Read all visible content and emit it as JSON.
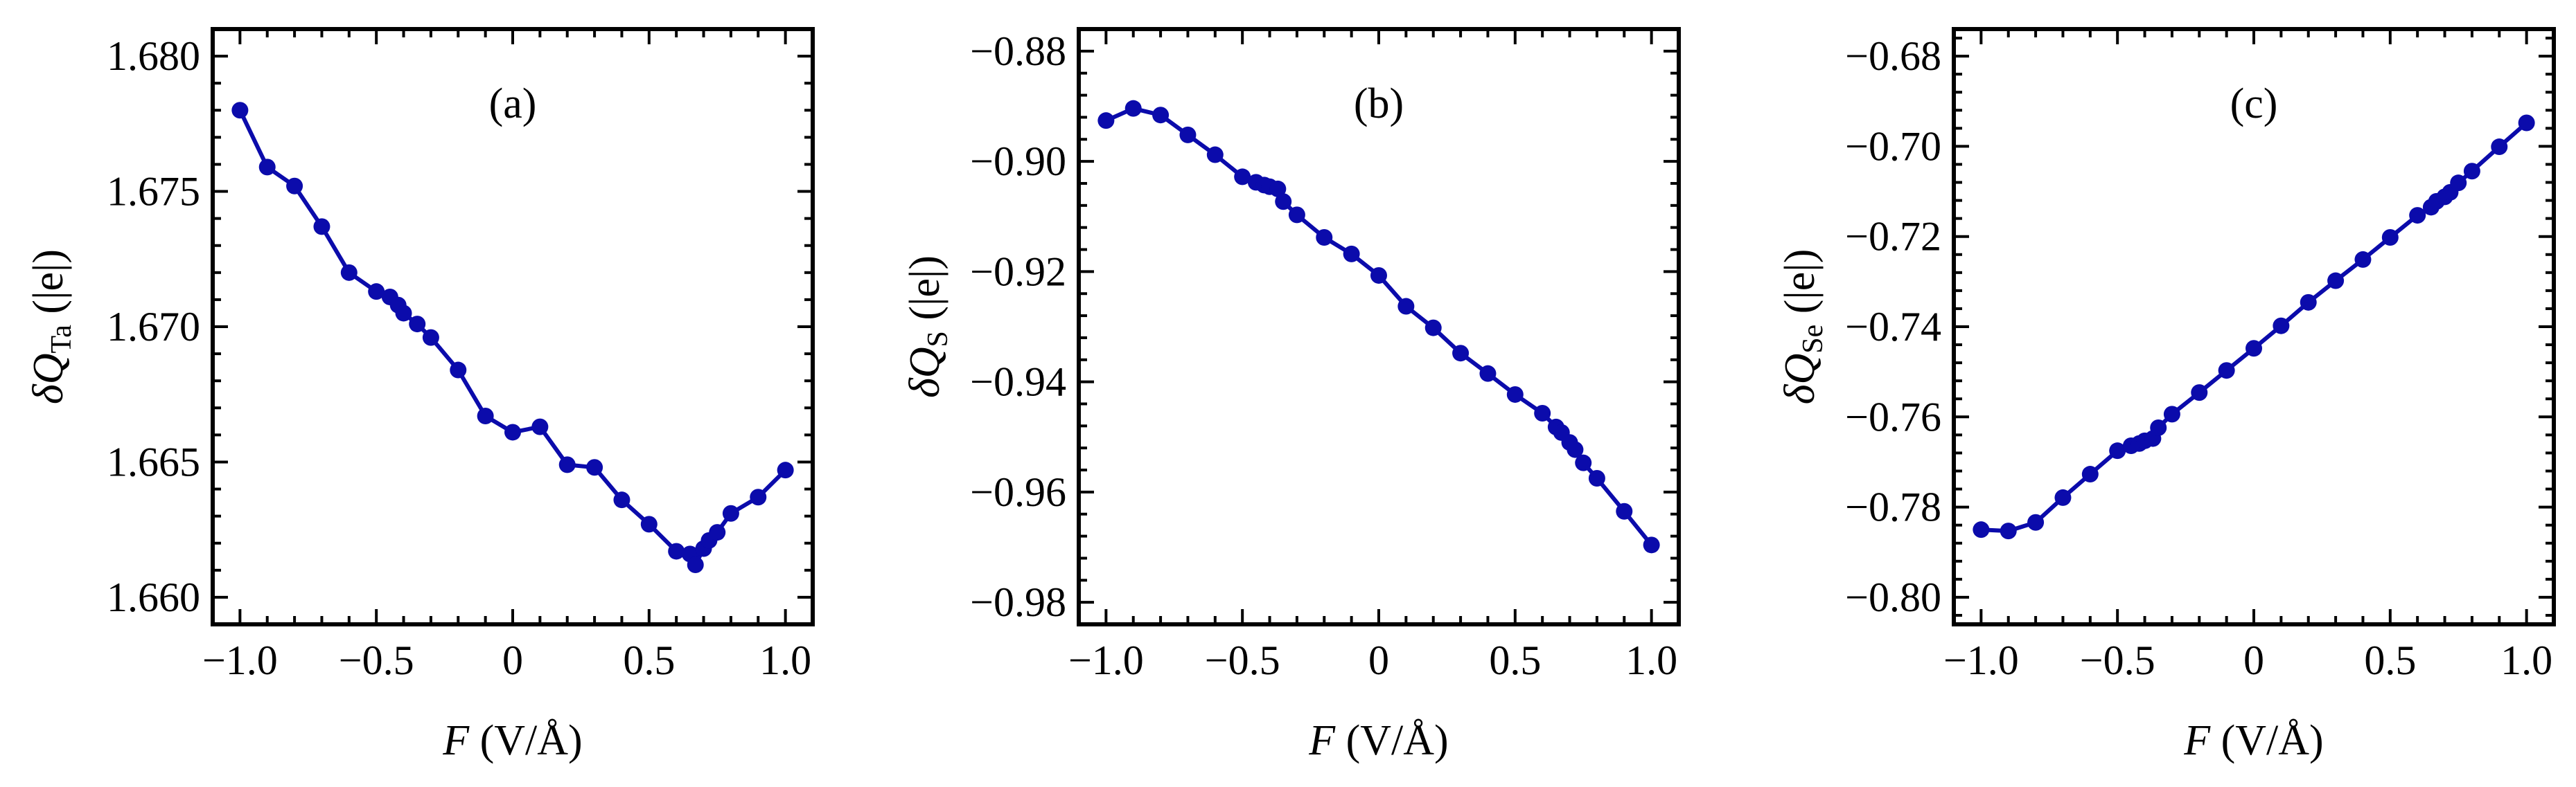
{
  "chart_data": [
    {
      "type": "line",
      "panel_label": "(a)",
      "xlabel": "F (V/Å)",
      "xlabel_var": "F",
      "xlabel_unit": " (V/Å)",
      "ylabel": "δQTa (|e|)",
      "ylabel_prefix": "δQ",
      "ylabel_sub": "Ta",
      "ylabel_unit": " (|e|)",
      "xlim": [
        -1.1,
        1.1
      ],
      "ylim": [
        1.659,
        1.681
      ],
      "xticks": [
        -1.0,
        -0.5,
        0,
        0.5,
        1.0
      ],
      "xtick_labels": [
        "−1.0",
        "−0.5",
        "0",
        "0.5",
        "1.0"
      ],
      "yticks": [
        1.66,
        1.665,
        1.67,
        1.675,
        1.68
      ],
      "ytick_labels": [
        "1.660",
        "1.665",
        "1.670",
        "1.675",
        "1.680"
      ],
      "x": [
        -1.0,
        -0.9,
        -0.8,
        -0.7,
        -0.6,
        -0.5,
        -0.45,
        -0.42,
        -0.4,
        -0.35,
        -0.3,
        -0.2,
        -0.1,
        0.0,
        0.1,
        0.2,
        0.3,
        0.4,
        0.5,
        0.6,
        0.65,
        0.67,
        0.7,
        0.72,
        0.75,
        0.8,
        0.9,
        1.0
      ],
      "y": [
        1.678,
        1.6759,
        1.6752,
        1.6737,
        1.672,
        1.6713,
        1.6711,
        1.6708,
        1.6705,
        1.6701,
        1.6696,
        1.6684,
        1.6667,
        1.6661,
        1.6663,
        1.6649,
        1.6648,
        1.6636,
        1.6627,
        1.6617,
        1.6616,
        1.6612,
        1.6618,
        1.6621,
        1.6624,
        1.6631,
        1.6637,
        1.6647
      ]
    },
    {
      "type": "line",
      "panel_label": "(b)",
      "xlabel": "F (V/Å)",
      "xlabel_var": "F",
      "xlabel_unit": " (V/Å)",
      "ylabel": "δQS (|e|)",
      "ylabel_prefix": "δQ",
      "ylabel_sub": "S",
      "ylabel_unit": " (|e|)",
      "xlim": [
        -1.1,
        1.1
      ],
      "ylim": [
        -0.984,
        -0.876
      ],
      "xticks": [
        -1.0,
        -0.5,
        0,
        0.5,
        1.0
      ],
      "xtick_labels": [
        "−1.0",
        "−0.5",
        "0",
        "0.5",
        "1.0"
      ],
      "yticks": [
        -0.98,
        -0.96,
        -0.94,
        -0.92,
        -0.9,
        -0.88
      ],
      "ytick_labels": [
        "−0.98",
        "−0.96",
        "−0.94",
        "−0.92",
        "−0.90",
        "−0.88"
      ],
      "x": [
        -1.0,
        -0.9,
        -0.8,
        -0.7,
        -0.6,
        -0.5,
        -0.45,
        -0.42,
        -0.4,
        -0.37,
        -0.35,
        -0.3,
        -0.2,
        -0.1,
        0.0,
        0.1,
        0.2,
        0.3,
        0.4,
        0.5,
        0.6,
        0.65,
        0.67,
        0.7,
        0.72,
        0.75,
        0.8,
        0.9,
        1.0
      ],
      "y": [
        -0.8926,
        -0.8904,
        -0.8916,
        -0.8952,
        -0.8988,
        -0.9028,
        -0.9038,
        -0.9043,
        -0.9046,
        -0.905,
        -0.9073,
        -0.9097,
        -0.9138,
        -0.9168,
        -0.9207,
        -0.9263,
        -0.9302,
        -0.9348,
        -0.9385,
        -0.9423,
        -0.9457,
        -0.9482,
        -0.9492,
        -0.951,
        -0.9523,
        -0.9547,
        -0.9575,
        -0.9635,
        -0.9696
      ]
    },
    {
      "type": "line",
      "panel_label": "(c)",
      "xlabel": "F (V/Å)",
      "xlabel_var": "F",
      "xlabel_unit": " (V/Å)",
      "ylabel": "δQSe (|e|)",
      "ylabel_prefix": "δQ",
      "ylabel_sub": "Se",
      "ylabel_unit": " (|e|)",
      "xlim": [
        -1.1,
        1.1
      ],
      "ylim": [
        -0.806,
        -0.674
      ],
      "xticks": [
        -1.0,
        -0.5,
        0,
        0.5,
        1.0
      ],
      "xtick_labels": [
        "−1.0",
        "−0.5",
        "0",
        "0.5",
        "1.0"
      ],
      "yticks": [
        -0.8,
        -0.78,
        -0.76,
        -0.74,
        -0.72,
        -0.7,
        -0.68
      ],
      "ytick_labels": [
        "−0.80",
        "−0.78",
        "−0.76",
        "−0.74",
        "−0.72",
        "−0.70",
        "−0.68"
      ],
      "x": [
        -1.0,
        -0.9,
        -0.8,
        -0.7,
        -0.6,
        -0.5,
        -0.45,
        -0.42,
        -0.4,
        -0.37,
        -0.35,
        -0.3,
        -0.2,
        -0.1,
        0.0,
        0.1,
        0.2,
        0.3,
        0.4,
        0.5,
        0.6,
        0.65,
        0.67,
        0.7,
        0.72,
        0.75,
        0.8,
        0.9,
        1.0
      ],
      "y": [
        -0.785,
        -0.7853,
        -0.7834,
        -0.7779,
        -0.7727,
        -0.7675,
        -0.7664,
        -0.7659,
        -0.7653,
        -0.7648,
        -0.7624,
        -0.7594,
        -0.7546,
        -0.7497,
        -0.7448,
        -0.7398,
        -0.7346,
        -0.7298,
        -0.7251,
        -0.7202,
        -0.7153,
        -0.7135,
        -0.7122,
        -0.7112,
        -0.7102,
        -0.7081,
        -0.7055,
        -0.7001,
        -0.6948
      ]
    }
  ],
  "colors": {
    "series": "#0b0bab",
    "axis": "#000000"
  }
}
